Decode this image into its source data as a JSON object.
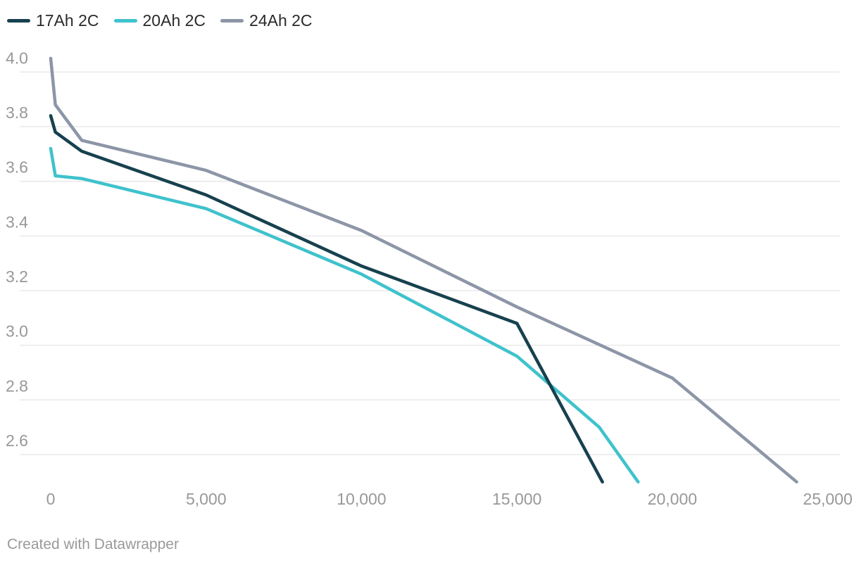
{
  "legend": {
    "items": [
      {
        "label": "17Ah 2C",
        "color": "#17414f"
      },
      {
        "label": "20Ah 2C",
        "color": "#3fc2cc"
      },
      {
        "label": "24Ah 2C",
        "color": "#8d96a7"
      }
    ]
  },
  "chart_data": {
    "type": "line",
    "title": "",
    "xlabel": "",
    "ylabel": "",
    "xlim": [
      0,
      25000
    ],
    "ylim": [
      2.45,
      4.08
    ],
    "grid": "horizontal",
    "legend_position": "top-left",
    "x_ticks": [
      0,
      5000,
      10000,
      15000,
      20000,
      25000
    ],
    "x_tick_labels": [
      "0",
      "5,000",
      "10,000",
      "15,000",
      "20,000",
      "25,000"
    ],
    "y_ticks": [
      2.6,
      2.8,
      3.0,
      3.2,
      3.4,
      3.6,
      3.8,
      4.0
    ],
    "y_tick_labels": [
      "2.6",
      "2.8",
      "3.0",
      "3.2",
      "3.4",
      "3.6",
      "3.8",
      "4.0"
    ],
    "draw_order": [
      1,
      2,
      0
    ],
    "series": [
      {
        "name": "17Ah 2C",
        "color": "#17414f",
        "points": [
          [
            0,
            3.84
          ],
          [
            150,
            3.78
          ],
          [
            1000,
            3.71
          ],
          [
            5000,
            3.55
          ],
          [
            10000,
            3.29
          ],
          [
            15000,
            3.08
          ],
          [
            17750,
            2.5
          ]
        ]
      },
      {
        "name": "20Ah 2C",
        "color": "#3fc2cc",
        "points": [
          [
            0,
            3.72
          ],
          [
            150,
            3.62
          ],
          [
            1000,
            3.61
          ],
          [
            5000,
            3.5
          ],
          [
            10000,
            3.26
          ],
          [
            15000,
            2.96
          ],
          [
            17650,
            2.7
          ],
          [
            18900,
            2.5
          ]
        ]
      },
      {
        "name": "24Ah 2C",
        "color": "#8d96a7",
        "points": [
          [
            0,
            4.05
          ],
          [
            150,
            3.88
          ],
          [
            1000,
            3.75
          ],
          [
            5000,
            3.64
          ],
          [
            10000,
            3.42
          ],
          [
            15000,
            3.14
          ],
          [
            20000,
            2.88
          ],
          [
            24000,
            2.5
          ]
        ]
      }
    ]
  },
  "footer": {
    "credit": "Created with Datawrapper"
  }
}
